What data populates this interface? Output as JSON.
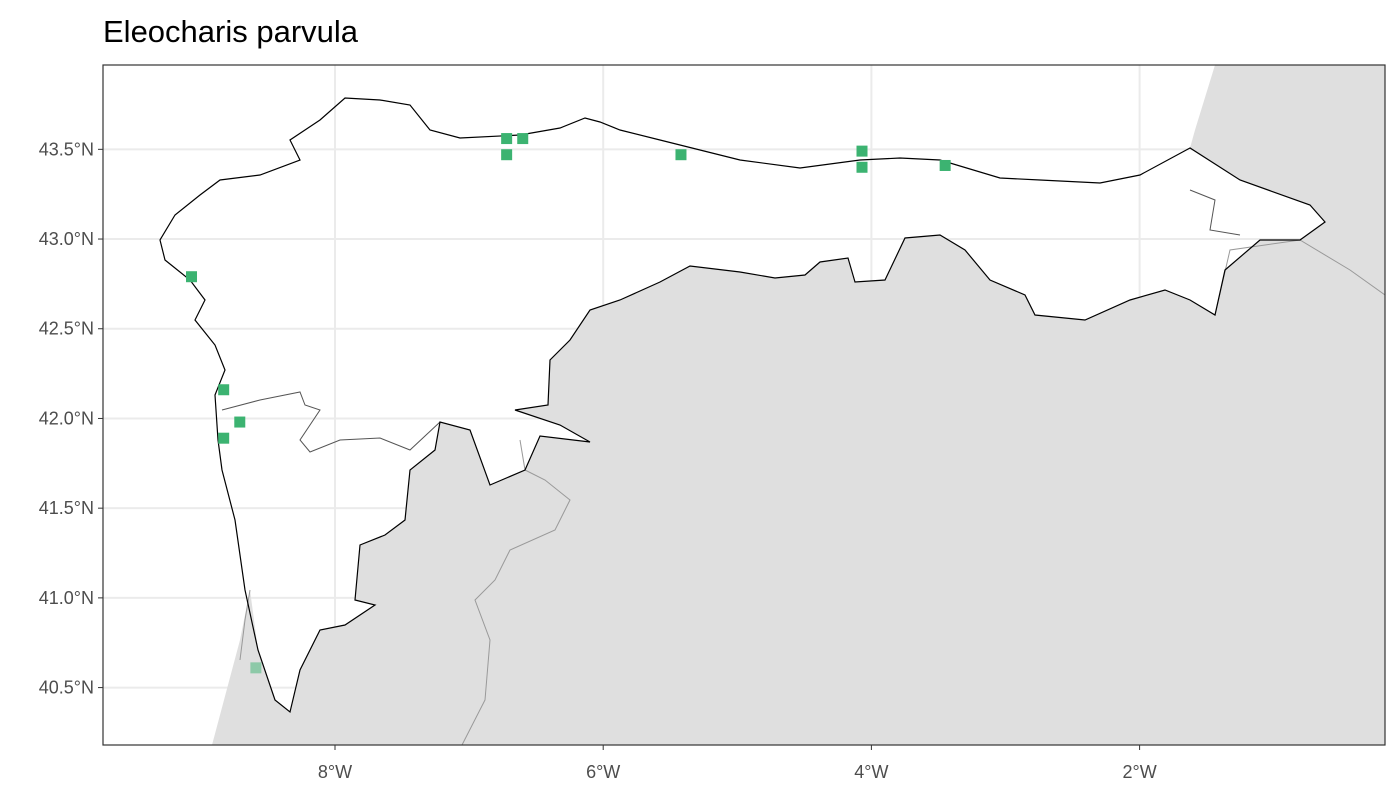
{
  "title": "Eleocharis parvula",
  "colors": {
    "point": "#3cb371",
    "land_outside": "#dfdfdf",
    "grid": "#ebebeb"
  },
  "map": {
    "lon_range": [
      -9.73,
      -0.17
    ],
    "lat_range": [
      40.18,
      43.97
    ],
    "x_ticks": [
      {
        "value": -8,
        "label": "8°W"
      },
      {
        "value": -6,
        "label": "6°W"
      },
      {
        "value": -4,
        "label": "4°W"
      },
      {
        "value": -2,
        "label": "2°W"
      }
    ],
    "y_ticks": [
      {
        "value": 43.5,
        "label": "43.5°N"
      },
      {
        "value": 43.0,
        "label": "43.0°N"
      },
      {
        "value": 42.5,
        "label": "42.5°N"
      },
      {
        "value": 42.0,
        "label": "42.0°N"
      },
      {
        "value": 41.5,
        "label": "41.5°N"
      },
      {
        "value": 41.0,
        "label": "41.0°N"
      },
      {
        "value": 40.5,
        "label": "40.5°N"
      }
    ],
    "points": [
      {
        "lon": -6.72,
        "lat": 43.56,
        "alpha": 1
      },
      {
        "lon": -6.6,
        "lat": 43.56,
        "alpha": 1
      },
      {
        "lon": -6.72,
        "lat": 43.47,
        "alpha": 1
      },
      {
        "lon": -5.42,
        "lat": 43.47,
        "alpha": 1
      },
      {
        "lon": -4.07,
        "lat": 43.49,
        "alpha": 1
      },
      {
        "lon": -4.07,
        "lat": 43.4,
        "alpha": 1
      },
      {
        "lon": -3.45,
        "lat": 43.41,
        "alpha": 1
      },
      {
        "lon": -9.07,
        "lat": 42.79,
        "alpha": 1
      },
      {
        "lon": -8.83,
        "lat": 42.16,
        "alpha": 1
      },
      {
        "lon": -8.71,
        "lat": 41.98,
        "alpha": 1
      },
      {
        "lon": -8.83,
        "lat": 41.89,
        "alpha": 1
      },
      {
        "lon": -8.59,
        "lat": 40.61,
        "alpha": 0.5
      }
    ]
  }
}
